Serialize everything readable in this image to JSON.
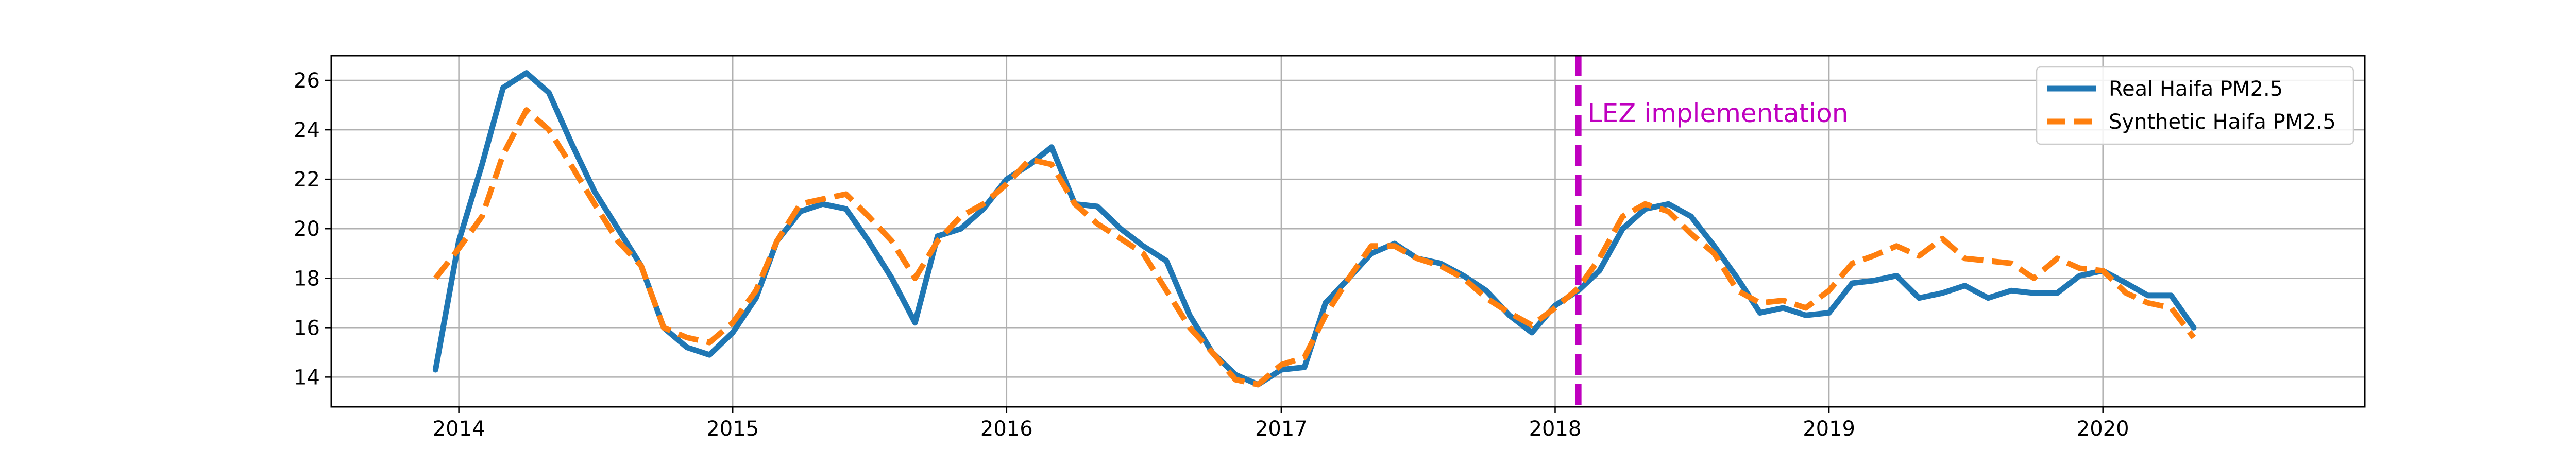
{
  "chart_data": {
    "type": "line",
    "title": "",
    "xlabel": "",
    "ylabel": "",
    "xlim": [
      "2013-07-15",
      "2020-12-15"
    ],
    "ylim": [
      12.8,
      27.0
    ],
    "grid": true,
    "legend_position": "top-right",
    "x_tick_labels": [
      "2014",
      "2015",
      "2016",
      "2017",
      "2018",
      "2019",
      "2020"
    ],
    "x_ticks": [
      "2014-01-01",
      "2015-01-01",
      "2016-01-01",
      "2017-01-01",
      "2018-01-01",
      "2019-01-01",
      "2020-01-01"
    ],
    "y_tick_labels": [
      "14",
      "16",
      "18",
      "20",
      "22",
      "24",
      "26"
    ],
    "y_ticks": [
      14,
      16,
      18,
      20,
      22,
      24,
      26
    ],
    "series": [
      {
        "name": "Real Haifa PM2.5",
        "color": "#1f77b4",
        "style": "solid",
        "x": [
          "2013-12-01",
          "2014-01-01",
          "2014-02-01",
          "2014-03-01",
          "2014-04-01",
          "2014-05-01",
          "2014-06-01",
          "2014-07-01",
          "2014-08-01",
          "2014-09-01",
          "2014-10-01",
          "2014-11-01",
          "2014-12-01",
          "2015-01-01",
          "2015-02-01",
          "2015-03-01",
          "2015-04-01",
          "2015-05-01",
          "2015-06-01",
          "2015-07-01",
          "2015-08-01",
          "2015-09-01",
          "2015-10-01",
          "2015-11-01",
          "2015-12-01",
          "2016-01-01",
          "2016-02-01",
          "2016-03-01",
          "2016-04-01",
          "2016-05-01",
          "2016-06-01",
          "2016-07-01",
          "2016-08-01",
          "2016-09-01",
          "2016-10-01",
          "2016-11-01",
          "2016-12-01",
          "2017-01-01",
          "2017-02-01",
          "2017-03-01",
          "2017-04-01",
          "2017-05-01",
          "2017-06-01",
          "2017-07-01",
          "2017-08-01",
          "2017-09-01",
          "2017-10-01",
          "2017-11-01",
          "2017-12-01",
          "2018-01-01",
          "2018-02-01",
          "2018-03-01",
          "2018-04-01",
          "2018-05-01",
          "2018-06-01",
          "2018-07-01",
          "2018-08-01",
          "2018-09-01",
          "2018-10-01",
          "2018-11-01",
          "2018-12-01",
          "2019-01-01",
          "2019-02-01",
          "2019-03-01",
          "2019-04-01",
          "2019-05-01",
          "2019-06-01",
          "2019-07-01",
          "2019-08-01",
          "2019-09-01",
          "2019-10-01",
          "2019-11-01",
          "2019-12-01",
          "2020-01-01",
          "2020-02-01",
          "2020-03-01",
          "2020-04-01",
          "2020-05-01"
        ],
        "values": [
          14.3,
          19.5,
          22.6,
          25.7,
          26.3,
          25.5,
          23.4,
          21.5,
          20.0,
          18.5,
          16.0,
          15.2,
          14.9,
          15.8,
          17.2,
          19.5,
          20.7,
          21.0,
          20.8,
          19.5,
          18.0,
          16.2,
          19.7,
          20.0,
          20.8,
          22.0,
          22.6,
          23.3,
          21.0,
          20.9,
          20.0,
          19.3,
          18.7,
          16.5,
          15.0,
          14.1,
          13.7,
          14.3,
          14.4,
          17.0,
          18.0,
          19.0,
          19.4,
          18.8,
          18.6,
          18.1,
          17.5,
          16.5,
          15.8,
          16.9,
          17.5,
          18.3,
          20.0,
          20.8,
          21.0,
          20.5,
          19.3,
          18.0,
          16.6,
          16.8,
          16.5,
          16.6,
          17.8,
          17.9,
          18.1,
          17.2,
          17.4,
          17.7,
          17.2,
          17.5,
          17.4,
          17.4,
          18.1,
          18.3,
          17.8,
          17.3,
          17.3,
          16.0
        ]
      },
      {
        "name": "Synthetic Haifa PM2.5",
        "color": "#ff7f0e",
        "style": "dashed",
        "x": [
          "2013-12-01",
          "2014-01-01",
          "2014-02-01",
          "2014-03-01",
          "2014-04-01",
          "2014-05-01",
          "2014-06-01",
          "2014-07-01",
          "2014-08-01",
          "2014-09-01",
          "2014-10-01",
          "2014-11-01",
          "2014-12-01",
          "2015-01-01",
          "2015-02-01",
          "2015-03-01",
          "2015-04-01",
          "2015-05-01",
          "2015-06-01",
          "2015-07-01",
          "2015-08-01",
          "2015-09-01",
          "2015-10-01",
          "2015-11-01",
          "2015-12-01",
          "2016-01-01",
          "2016-02-01",
          "2016-03-01",
          "2016-04-01",
          "2016-05-01",
          "2016-06-01",
          "2016-07-01",
          "2016-08-01",
          "2016-09-01",
          "2016-10-01",
          "2016-11-01",
          "2016-12-01",
          "2017-01-01",
          "2017-02-01",
          "2017-03-01",
          "2017-04-01",
          "2017-05-01",
          "2017-06-01",
          "2017-07-01",
          "2017-08-01",
          "2017-09-01",
          "2017-10-01",
          "2017-11-01",
          "2017-12-01",
          "2018-01-01",
          "2018-02-01",
          "2018-03-01",
          "2018-04-01",
          "2018-05-01",
          "2018-06-01",
          "2018-07-01",
          "2018-08-01",
          "2018-09-01",
          "2018-10-01",
          "2018-11-01",
          "2018-12-01",
          "2019-01-01",
          "2019-02-01",
          "2019-03-01",
          "2019-04-01",
          "2019-05-01",
          "2019-06-01",
          "2019-07-01",
          "2019-08-01",
          "2019-09-01",
          "2019-10-01",
          "2019-11-01",
          "2019-12-01",
          "2020-01-01",
          "2020-02-01",
          "2020-03-01",
          "2020-04-01",
          "2020-05-01"
        ],
        "values": [
          18.0,
          19.2,
          20.5,
          23.0,
          24.8,
          24.0,
          22.5,
          21.0,
          19.5,
          18.5,
          16.0,
          15.6,
          15.4,
          16.2,
          17.5,
          19.5,
          21.0,
          21.2,
          21.4,
          20.5,
          19.5,
          18.0,
          19.5,
          20.5,
          21.0,
          21.8,
          22.8,
          22.6,
          21.0,
          20.2,
          19.6,
          19.0,
          17.5,
          16.0,
          15.0,
          13.9,
          13.7,
          14.5,
          14.8,
          16.5,
          18.0,
          19.3,
          19.3,
          18.8,
          18.5,
          18.0,
          17.2,
          16.6,
          16.1,
          16.8,
          17.6,
          18.8,
          20.5,
          21.0,
          20.7,
          19.8,
          19.0,
          17.5,
          17.0,
          17.1,
          16.8,
          17.5,
          18.6,
          18.9,
          19.3,
          18.9,
          19.6,
          18.8,
          18.7,
          18.6,
          18.0,
          18.8,
          18.4,
          18.3,
          17.4,
          17.0,
          16.8,
          15.6
        ]
      }
    ],
    "annotations": [
      {
        "type": "vline",
        "x": "2018-02-01",
        "color": "#bf00bf",
        "style": "dashed",
        "label": "LEZ implementation"
      }
    ]
  }
}
